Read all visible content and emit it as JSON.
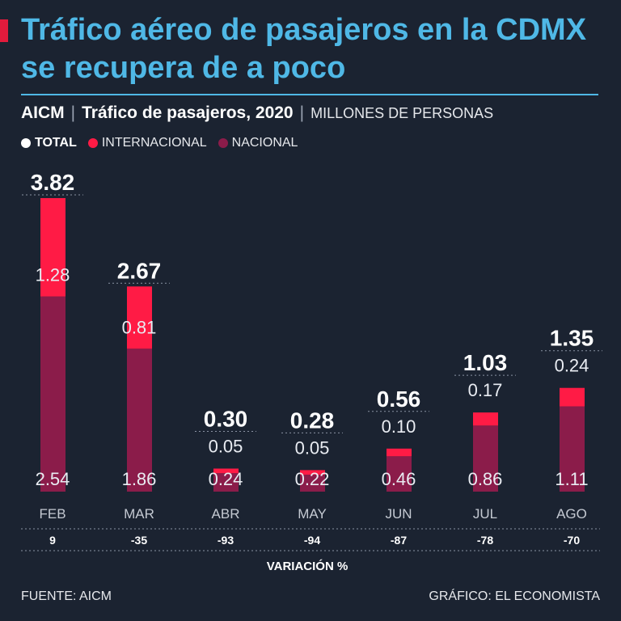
{
  "headline": "Tráfico aéreo de pasajeros en la CDMX se recupera de a poco",
  "subtitle": {
    "source_name": "AICM",
    "description": "Tráfico de pasajeros, 2020",
    "units": "MILLONES DE PERSONAS"
  },
  "legend": {
    "total": "TOTAL",
    "international": "INTERNACIONAL",
    "national": "NACIONAL"
  },
  "colors": {
    "background": "#1b2331",
    "headline": "#4fb8e6",
    "international": "#ff1b45",
    "national": "#8b1c4a",
    "total": "#ffffff"
  },
  "variation_label": "VARIACIÓN %",
  "footer": {
    "source": "FUENTE: AICM",
    "credit": "GRÁFICO: EL ECONOMISTA"
  },
  "chart_data": {
    "type": "bar",
    "stacked": true,
    "title": "Tráfico de pasajeros, 2020",
    "ylabel": "Millones de personas",
    "categories": [
      "FEB",
      "MAR",
      "ABR",
      "MAY",
      "JUN",
      "JUL",
      "AGO"
    ],
    "series": [
      {
        "name": "NACIONAL",
        "values": [
          "2.54",
          "1.86",
          "0.24",
          "0.22",
          "0.46",
          "0.86",
          "1.11"
        ]
      },
      {
        "name": "INTERNACIONAL",
        "values": [
          "1.28",
          "0.81",
          "0.05",
          "0.05",
          "0.10",
          "0.17",
          "0.24"
        ]
      }
    ],
    "totals": [
      "3.82",
      "2.67",
      "0.30",
      "0.28",
      "0.56",
      "1.03",
      "1.35"
    ],
    "variation": [
      "9",
      "-35",
      "-93",
      "-94",
      "-87",
      "-78",
      "-70"
    ],
    "ylim": [
      0,
      3.82
    ]
  }
}
